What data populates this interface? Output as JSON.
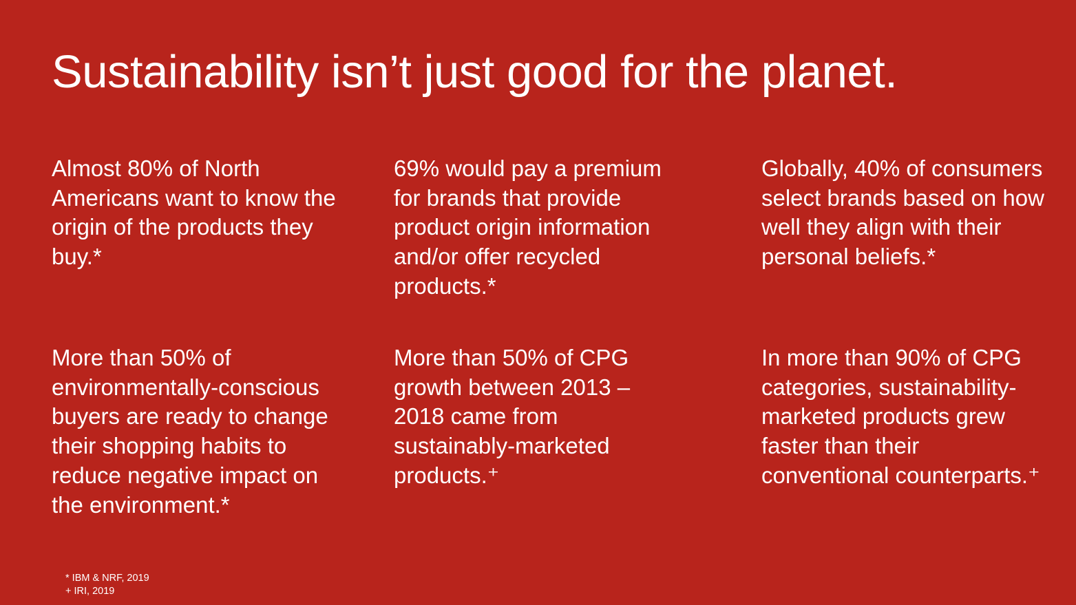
{
  "slide": {
    "title": "Sustainability isn’t just good for the planet.",
    "stats": [
      {
        "text": "Almost 80% of North Americans want to know the origin of the products they buy.*"
      },
      {
        "text": "69% would pay a premium for brands that provide product origin information and/or offer recycled products.*"
      },
      {
        "text": "Globally, 40% of consumers select brands based on how well they align with their personal beliefs.*"
      },
      {
        "text": "More than 50% of environmentally-conscious buyers are ready to change their shopping habits to reduce negative impact on the environment.*"
      },
      {
        "text": "More than 50% of CPG growth between 2013 – 2018 came from sustainably-marketed products.⁺"
      },
      {
        "text": "In more than 90% of CPG categories, sustainability-marketed products grew faster than their conventional counterparts.⁺"
      }
    ],
    "footnotes": [
      "* IBM & NRF, 2019",
      "+ IRI, 2019"
    ]
  },
  "colors": {
    "background": "#b8241c",
    "text": "#ffffff"
  }
}
